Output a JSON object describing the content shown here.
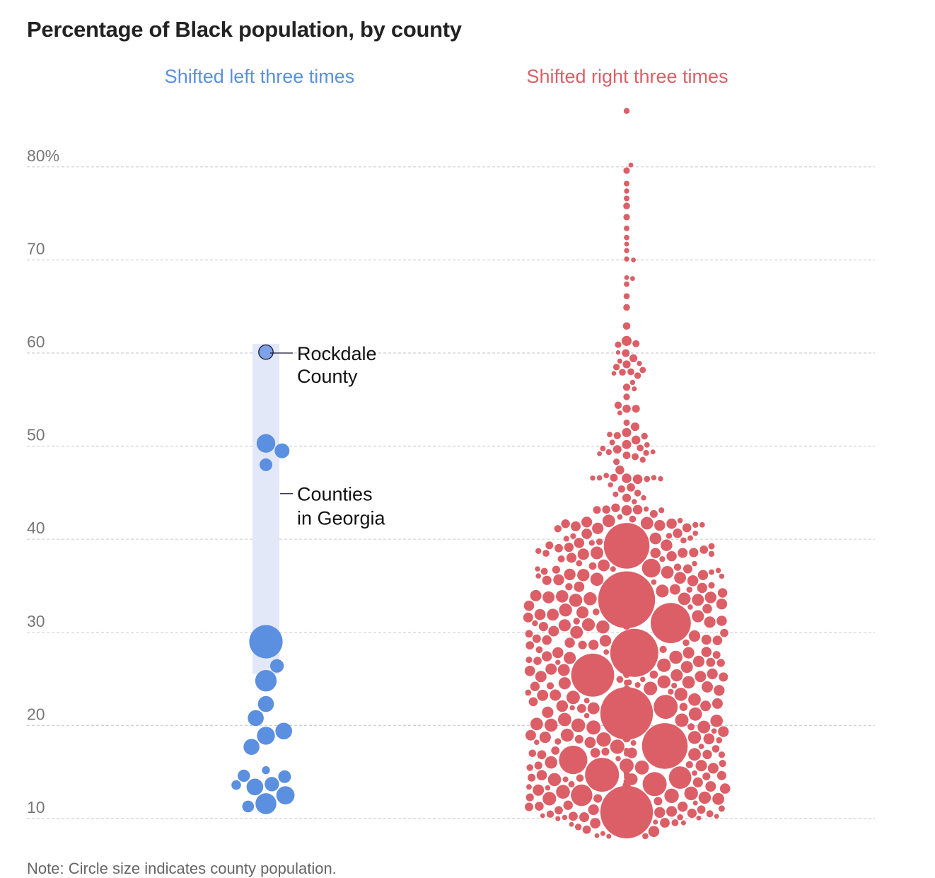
{
  "chart_data": {
    "type": "scatter",
    "title": "Percentage of Black population, by county",
    "note": "Note: Circle size indicates county population.",
    "ylabel": "",
    "ylim": [
      8,
      86
    ],
    "y_ticks": [
      {
        "value": 10,
        "label": "10"
      },
      {
        "value": 20,
        "label": "20"
      },
      {
        "value": 30,
        "label": "30"
      },
      {
        "value": 40,
        "label": "40"
      },
      {
        "value": 50,
        "label": "50"
      },
      {
        "value": 60,
        "label": "60"
      },
      {
        "value": 70,
        "label": "70"
      },
      {
        "value": 80,
        "label": "80%"
      }
    ],
    "grid": true,
    "groups": [
      {
        "name": "Shifted left three times",
        "color": "#5b8fdf",
        "highlight_range": [
          25.5,
          61
        ],
        "highlight_color": "#e3e8f9",
        "annotations": [
          {
            "text": [
              "Rockdale",
              "County"
            ],
            "y": 60
          },
          {
            "text": [
              "Counties",
              "in Georgia"
            ],
            "y": 44.9
          }
        ],
        "points": [
          {
            "y": 60.1,
            "pop": 90000,
            "highlight": true
          },
          {
            "y": 50.3,
            "pop": 150000
          },
          {
            "y": 49.5,
            "pop": 95000
          },
          {
            "y": 48.0,
            "pop": 70000
          },
          {
            "y": 29.0,
            "pop": 480000
          },
          {
            "y": 26.4,
            "pop": 80000
          },
          {
            "y": 24.8,
            "pop": 200000
          },
          {
            "y": 22.3,
            "pop": 110000
          },
          {
            "y": 20.8,
            "pop": 110000
          },
          {
            "y": 19.4,
            "pop": 120000
          },
          {
            "y": 18.9,
            "pop": 140000
          },
          {
            "y": 17.7,
            "pop": 110000
          },
          {
            "y": 15.2,
            "pop": 28000
          },
          {
            "y": 14.6,
            "pop": 65000
          },
          {
            "y": 14.5,
            "pop": 70000
          },
          {
            "y": 13.7,
            "pop": 90000
          },
          {
            "y": 13.6,
            "pop": 40000
          },
          {
            "y": 13.4,
            "pop": 120000
          },
          {
            "y": 12.5,
            "pop": 145000
          },
          {
            "y": 11.6,
            "pop": 190000
          },
          {
            "y": 11.3,
            "pop": 60000
          }
        ]
      },
      {
        "name": "Shifted right three times",
        "color": "#dc5f67",
        "points": [
          {
            "y": 86.0,
            "pop": 15000
          },
          {
            "y": 80.2,
            "pop": 10000
          },
          {
            "y": 79.6,
            "pop": 18000
          },
          {
            "y": 78.2,
            "pop": 14000
          },
          {
            "y": 77.4,
            "pop": 12000
          },
          {
            "y": 76.6,
            "pop": 14000
          },
          {
            "y": 75.8,
            "pop": 20000
          },
          {
            "y": 74.6,
            "pop": 18000
          },
          {
            "y": 73.4,
            "pop": 14000
          },
          {
            "y": 72.4,
            "pop": 13000
          },
          {
            "y": 71.7,
            "pop": 10000
          },
          {
            "y": 71.0,
            "pop": 12000
          },
          {
            "y": 70.0,
            "pop": 10000
          },
          {
            "y": 70.1,
            "pop": 12000
          },
          {
            "y": 68.1,
            "pop": 10000
          },
          {
            "y": 68.0,
            "pop": 10000
          },
          {
            "y": 67.4,
            "pop": 13000
          },
          {
            "y": 66.1,
            "pop": 16000
          },
          {
            "y": 64.9,
            "pop": 20000
          },
          {
            "y": 62.9,
            "pop": 24000
          },
          {
            "y": 61.3,
            "pop": 44000
          },
          {
            "y": 61.0,
            "pop": 22000
          },
          {
            "y": 60.9,
            "pop": 18000
          }
        ],
        "cluster_note": "plus a dense cluster of more than 200 smaller rural counties between about 8% and 60%, densest between 12% and 38%, with the largest circles near 39, 33, 31, 28, 25, 21, 18, 16, 15 and 11 percent"
      }
    ]
  }
}
